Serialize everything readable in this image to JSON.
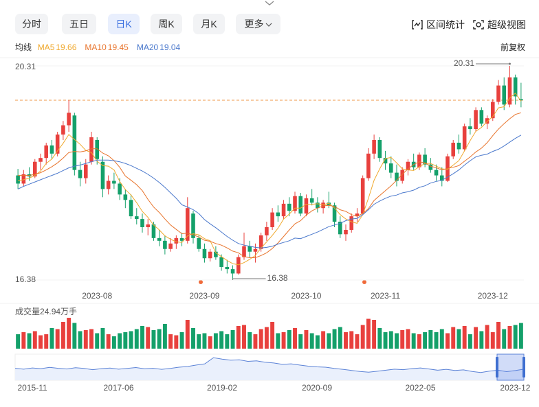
{
  "toolbar": {
    "tabs": [
      "分时",
      "五日",
      "日K",
      "周K",
      "月K",
      "更多"
    ],
    "active": 2,
    "tools": [
      "区间统计",
      "超级视图"
    ]
  },
  "chart_data": [
    {
      "type": "candlestick",
      "legend_title": "均线",
      "legend_values": [
        19.66,
        19.45,
        19.04
      ],
      "adjust": "前复权",
      "up_color": "#e8403d",
      "down_color": "#14a06a",
      "categories": [
        null,
        null,
        null,
        null,
        null,
        null,
        null,
        null,
        null,
        null,
        null,
        null,
        null,
        null,
        "2023-08",
        null,
        null,
        null,
        null,
        null,
        null,
        null,
        null,
        null,
        null,
        null,
        null,
        null,
        null,
        null,
        null,
        null,
        null,
        "2023-09",
        null,
        null,
        null,
        null,
        null,
        null,
        null,
        null,
        null,
        null,
        null,
        null,
        null,
        null,
        null,
        null,
        null,
        "2023-10",
        null,
        null,
        null,
        null,
        null,
        null,
        null,
        null,
        null,
        null,
        null,
        null,
        null,
        "2023-11",
        null,
        null,
        null,
        null,
        null,
        null,
        null,
        null,
        null,
        null,
        null,
        null,
        null,
        null,
        null,
        null,
        null,
        null,
        "2023-12",
        null,
        null,
        null,
        null,
        null
      ],
      "open": [
        18.3,
        18.15,
        18.32,
        18.28,
        18.55,
        18.62,
        18.85,
        18.7,
        19.05,
        19.22,
        19.4,
        18.4,
        18.25,
        18.55,
        18.95,
        18.55,
        18.05,
        18.2,
        18.15,
        17.95,
        17.85,
        17.55,
        17.5,
        17.35,
        17.4,
        17.15,
        17.1,
        16.95,
        17.05,
        17.15,
        17.1,
        17.6,
        17.15,
        16.95,
        16.78,
        16.9,
        16.8,
        16.62,
        16.58,
        16.5,
        16.8,
        17.0,
        16.9,
        16.95,
        17.2,
        17.35,
        17.62,
        17.55,
        17.78,
        17.65,
        17.92,
        17.6,
        17.88,
        17.8,
        17.7,
        17.8,
        17.75,
        17.45,
        17.22,
        17.3,
        17.55,
        17.6,
        18.25,
        18.7,
        18.95,
        18.62,
        18.52,
        18.35,
        18.2,
        18.4,
        18.55,
        18.45,
        18.68,
        18.5,
        18.4,
        18.3,
        18.2,
        18.65,
        18.9,
        18.78,
        19.2,
        19.15,
        19.5,
        19.25,
        19.35,
        19.65,
        19.95,
        19.6,
        20.1,
        19.7
      ],
      "high": [
        18.42,
        18.4,
        18.45,
        18.6,
        18.7,
        18.9,
        18.95,
        19.1,
        19.3,
        19.68,
        19.45,
        18.55,
        18.6,
        19.1,
        19.0,
        18.65,
        18.3,
        18.35,
        18.25,
        18.05,
        17.95,
        17.7,
        17.6,
        17.5,
        17.45,
        17.3,
        17.2,
        17.15,
        17.2,
        17.25,
        17.9,
        17.65,
        17.2,
        17.05,
        16.95,
        17.0,
        16.85,
        16.75,
        16.65,
        16.85,
        17.25,
        17.1,
        17.05,
        17.25,
        17.45,
        17.7,
        17.75,
        17.85,
        17.9,
        18.0,
        17.98,
        17.95,
        18.05,
        17.9,
        17.85,
        18.0,
        17.8,
        17.55,
        17.4,
        17.6,
        17.7,
        18.3,
        18.8,
        19.05,
        19.0,
        18.75,
        18.65,
        18.5,
        18.45,
        18.6,
        18.7,
        18.72,
        18.8,
        18.62,
        18.5,
        18.45,
        18.7,
        18.95,
        19.05,
        19.25,
        19.35,
        19.55,
        19.55,
        19.4,
        19.7,
        20.05,
        20.1,
        20.31,
        20.15,
        20.0
      ],
      "low": [
        18.05,
        18.1,
        18.2,
        18.25,
        18.4,
        18.5,
        18.6,
        18.65,
        18.95,
        19.1,
        18.3,
        18.1,
        18.15,
        18.5,
        18.5,
        17.9,
        17.95,
        18.05,
        17.85,
        17.7,
        17.5,
        17.4,
        17.25,
        17.2,
        17.1,
        17.0,
        16.85,
        16.9,
        16.95,
        17.0,
        17.05,
        17.05,
        16.9,
        16.7,
        16.72,
        16.75,
        16.55,
        16.5,
        16.38,
        16.48,
        16.75,
        16.8,
        16.7,
        16.9,
        17.1,
        17.3,
        17.45,
        17.5,
        17.55,
        17.6,
        17.55,
        17.55,
        17.75,
        17.62,
        17.6,
        17.7,
        17.35,
        17.15,
        17.1,
        17.25,
        17.45,
        17.58,
        18.2,
        18.6,
        18.55,
        18.4,
        18.25,
        18.1,
        18.15,
        18.3,
        18.4,
        18.4,
        18.45,
        18.35,
        18.2,
        18.1,
        18.18,
        18.6,
        18.7,
        18.75,
        19.05,
        19.1,
        19.2,
        19.15,
        19.3,
        19.6,
        19.5,
        19.55,
        19.6,
        19.55
      ],
      "close": [
        18.15,
        18.32,
        18.28,
        18.55,
        18.62,
        18.85,
        18.7,
        19.05,
        19.22,
        19.45,
        18.4,
        18.25,
        18.5,
        19.0,
        18.6,
        18.05,
        18.2,
        18.15,
        17.95,
        17.85,
        17.55,
        17.5,
        17.35,
        17.4,
        17.15,
        17.1,
        16.95,
        17.05,
        17.15,
        17.1,
        17.7,
        17.15,
        16.95,
        16.78,
        16.9,
        16.8,
        16.62,
        16.58,
        16.5,
        16.8,
        17.0,
        16.9,
        16.95,
        17.2,
        17.35,
        17.62,
        17.55,
        17.78,
        17.65,
        17.92,
        17.6,
        17.88,
        17.8,
        17.7,
        17.8,
        17.75,
        17.45,
        17.22,
        17.3,
        17.55,
        17.6,
        18.25,
        18.7,
        18.95,
        18.62,
        18.52,
        18.35,
        18.2,
        18.4,
        18.55,
        18.45,
        18.68,
        18.5,
        18.4,
        18.3,
        18.2,
        18.65,
        18.9,
        18.78,
        19.2,
        19.15,
        19.5,
        19.25,
        19.35,
        19.65,
        19.95,
        19.6,
        20.1,
        19.75,
        19.68
      ],
      "series": [
        {
          "name": "MA5",
          "color": "#f0a92e",
          "values": [
            18.2,
            18.22,
            18.25,
            18.3,
            18.38,
            18.52,
            18.6,
            18.75,
            18.89,
            19.05,
            18.96,
            18.87,
            18.76,
            18.72,
            18.56,
            18.48,
            18.47,
            18.4,
            18.19,
            18.04,
            17.94,
            17.8,
            17.64,
            17.53,
            17.39,
            17.3,
            17.19,
            17.13,
            17.08,
            17.07,
            17.19,
            17.23,
            17.21,
            17.14,
            17.1,
            16.88,
            16.81,
            16.74,
            16.68,
            16.66,
            16.7,
            16.76,
            16.83,
            16.97,
            17.08,
            17.2,
            17.33,
            17.5,
            17.59,
            17.7,
            17.7,
            17.77,
            17.77,
            17.78,
            17.76,
            17.79,
            17.7,
            17.58,
            17.5,
            17.45,
            17.42,
            17.58,
            17.88,
            18.21,
            18.42,
            18.61,
            18.63,
            18.53,
            18.42,
            18.4,
            18.39,
            18.46,
            18.52,
            18.52,
            18.47,
            18.42,
            18.41,
            18.49,
            18.57,
            18.75,
            18.94,
            19.11,
            19.18,
            19.29,
            19.38,
            19.54,
            19.56,
            19.72,
            19.81,
            19.66
          ]
        },
        {
          "name": "MA10",
          "color": "#e8742c",
          "values": [
            18.3,
            18.3,
            18.3,
            18.32,
            18.35,
            18.4,
            18.46,
            18.53,
            18.62,
            18.72,
            18.74,
            18.73,
            18.75,
            18.79,
            18.79,
            18.71,
            18.66,
            18.57,
            18.45,
            18.29,
            18.21,
            18.13,
            18.02,
            17.86,
            17.72,
            17.62,
            17.5,
            17.39,
            17.31,
            17.23,
            17.24,
            17.21,
            17.17,
            17.11,
            17.09,
            17.05,
            17.02,
            16.97,
            16.91,
            16.88,
            16.81,
            16.79,
            16.79,
            16.83,
            16.88,
            16.96,
            17.06,
            17.18,
            17.3,
            17.41,
            17.47,
            17.57,
            17.65,
            17.7,
            17.74,
            17.75,
            17.73,
            17.67,
            17.64,
            17.58,
            17.55,
            17.6,
            17.69,
            17.84,
            17.93,
            18.02,
            18.11,
            18.21,
            18.32,
            18.42,
            18.5,
            18.55,
            18.53,
            18.47,
            18.44,
            18.4,
            18.43,
            18.45,
            18.48,
            18.56,
            18.64,
            18.73,
            18.8,
            18.9,
            19.03,
            19.15,
            19.25,
            19.34,
            19.42,
            19.45
          ]
        },
        {
          "name": "MA20",
          "color": "#4a78cc",
          "values": [
            18.05,
            18.1,
            18.14,
            18.18,
            18.22,
            18.26,
            18.3,
            18.34,
            18.39,
            18.44,
            18.47,
            18.49,
            18.52,
            18.55,
            18.58,
            18.58,
            18.58,
            18.57,
            18.55,
            18.52,
            18.48,
            18.43,
            18.38,
            18.32,
            18.25,
            18.17,
            18.08,
            17.98,
            17.88,
            17.76,
            17.72,
            17.67,
            17.6,
            17.49,
            17.41,
            17.34,
            17.26,
            17.18,
            17.11,
            17.05,
            17.02,
            17.0,
            16.98,
            16.97,
            16.98,
            17.0,
            17.04,
            17.07,
            17.1,
            17.15,
            17.14,
            17.18,
            17.22,
            17.26,
            17.31,
            17.36,
            17.39,
            17.42,
            17.47,
            17.5,
            17.51,
            17.58,
            17.67,
            17.77,
            17.83,
            17.88,
            17.92,
            17.94,
            17.98,
            18.0,
            18.03,
            18.08,
            18.11,
            18.16,
            18.19,
            18.21,
            18.27,
            18.33,
            18.4,
            18.49,
            18.57,
            18.64,
            18.67,
            18.69,
            18.74,
            18.78,
            18.84,
            18.91,
            18.98,
            19.04
          ]
        }
      ],
      "ylim": [
        16.38,
        20.31
      ],
      "yticks": [
        16.38,
        20.31
      ],
      "max_label": 20.31,
      "min_label": 16.38,
      "grid": true
    },
    {
      "type": "bar",
      "title": "成交量",
      "current": 24.94,
      "unit": "万手",
      "ylim": [
        0,
        32
      ],
      "values": [
        14,
        16,
        15,
        17,
        13,
        14,
        20,
        19,
        26,
        30,
        25,
        17,
        18,
        19,
        15,
        20,
        14,
        12,
        15,
        16,
        17,
        19,
        22,
        21,
        18,
        19,
        24,
        14,
        13,
        16,
        28,
        20,
        14,
        15,
        12,
        15,
        17,
        14,
        18,
        22,
        23,
        16,
        14,
        19,
        21,
        26,
        15,
        16,
        18,
        20,
        14,
        18,
        15,
        13,
        17,
        15,
        19,
        21,
        16,
        17,
        14,
        23,
        29,
        28,
        20,
        16,
        17,
        15,
        18,
        19,
        15,
        14,
        16,
        18,
        16,
        19,
        15,
        21,
        19,
        22,
        14,
        21,
        17,
        23,
        16,
        26,
        19,
        22,
        23,
        24.94
      ]
    },
    {
      "type": "area",
      "color": "#5b82d6",
      "ylim": [
        8,
        22
      ],
      "categories": [
        null,
        null,
        "2015-11",
        null,
        null,
        null,
        null,
        null,
        null,
        null,
        null,
        null,
        "2017-06",
        null,
        null,
        null,
        null,
        null,
        null,
        null,
        null,
        null,
        null,
        null,
        "2019-02",
        null,
        null,
        null,
        null,
        null,
        null,
        null,
        null,
        null,
        null,
        "2020-09",
        null,
        null,
        null,
        null,
        null,
        null,
        null,
        null,
        null,
        null,
        null,
        "2022-05",
        null,
        null,
        null,
        null,
        null,
        null,
        null,
        null,
        null,
        null,
        "2023-12",
        null
      ],
      "values": [
        14,
        13.5,
        14.2,
        13.8,
        14.5,
        14,
        13.6,
        14.3,
        13.9,
        13.2,
        13.8,
        14.1,
        13.5,
        13.9,
        14.4,
        13.7,
        14,
        13.4,
        13.9,
        14.6,
        15,
        15.8,
        16.5,
        20,
        19.2,
        18.6,
        18.8,
        17.9,
        18.2,
        17.4,
        17,
        16.2,
        16.5,
        15.8,
        15.2,
        14.8,
        14.6,
        13.9,
        13.4,
        12.8,
        12.2,
        11.8,
        12.3,
        12.9,
        13.5,
        13.2,
        13.8,
        14.2,
        13.6,
        12.9,
        13.4,
        12.8,
        13.1,
        12.2,
        11.6,
        12.4,
        12.9,
        12.1,
        12.7,
        13.5
      ]
    }
  ]
}
